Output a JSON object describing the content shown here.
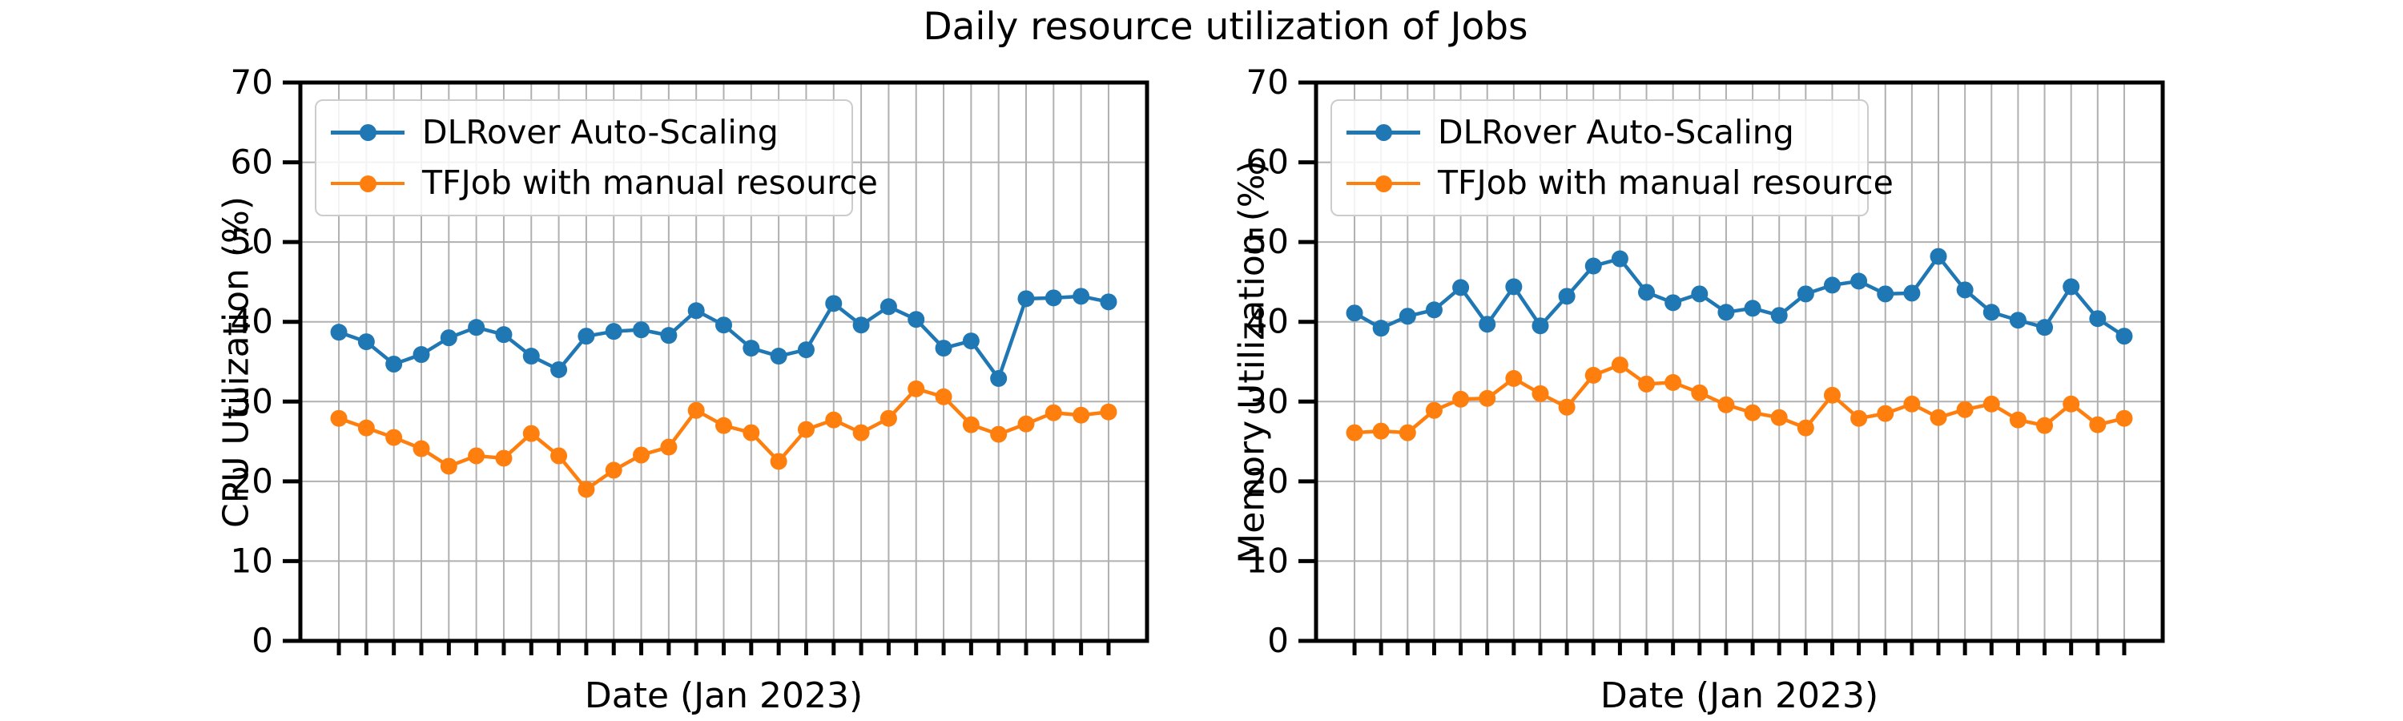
{
  "title": "Daily resource utilization of Jobs",
  "colors": {
    "series1": "#1f77b4",
    "series2": "#ff7f0e",
    "grid": "#b0b0b0",
    "axis": "#000000",
    "legend_border": "#cccccc"
  },
  "legend": {
    "series1": "DLRover Auto-Scaling",
    "series2": "TFJob with manual resource"
  },
  "chart_data": [
    {
      "type": "line",
      "title": "",
      "xlabel": "Date (Jan 2023)",
      "ylabel": "CPU Utilization (%)",
      "ylim": [
        0,
        70
      ],
      "yticks": [
        0,
        10,
        20,
        30,
        40,
        50,
        60,
        70
      ],
      "grid": true,
      "legend_position": "upper left",
      "x": [
        1,
        2,
        3,
        4,
        5,
        6,
        7,
        8,
        9,
        10,
        11,
        12,
        13,
        14,
        15,
        16,
        17,
        18,
        19,
        20,
        21,
        22,
        23,
        24,
        25,
        26,
        27,
        28,
        29
      ],
      "series": [
        {
          "name": "DLRover Auto-Scaling",
          "color": "#1f77b4",
          "values": [
            38.7,
            37.5,
            34.7,
            35.9,
            38.0,
            39.3,
            38.4,
            35.7,
            34.0,
            38.2,
            38.8,
            39.0,
            38.3,
            41.4,
            39.6,
            36.7,
            35.7,
            36.5,
            42.3,
            39.6,
            41.9,
            40.3,
            36.7,
            37.6,
            32.9,
            42.9,
            43.0,
            43.2,
            42.5
          ]
        },
        {
          "name": "TFJob with manual resource",
          "color": "#ff7f0e",
          "values": [
            27.9,
            26.7,
            25.5,
            24.1,
            21.9,
            23.2,
            22.9,
            26.0,
            23.2,
            19.0,
            21.4,
            23.3,
            24.3,
            28.9,
            27.0,
            26.1,
            22.5,
            26.5,
            27.7,
            26.1,
            27.9,
            31.6,
            30.6,
            27.1,
            25.9,
            27.2,
            28.6,
            28.3,
            28.7
          ]
        }
      ]
    },
    {
      "type": "line",
      "title": "",
      "xlabel": "Date (Jan 2023)",
      "ylabel": "Memory Utilization (%)",
      "ylim": [
        0,
        70
      ],
      "yticks": [
        0,
        10,
        20,
        30,
        40,
        50,
        60,
        70
      ],
      "grid": true,
      "legend_position": "upper left",
      "x": [
        1,
        2,
        3,
        4,
        5,
        6,
        7,
        8,
        9,
        10,
        11,
        12,
        13,
        14,
        15,
        16,
        17,
        18,
        19,
        20,
        21,
        22,
        23,
        24,
        25,
        26,
        27,
        28,
        29,
        30
      ],
      "series": [
        {
          "name": "DLRover Auto-Scaling",
          "color": "#1f77b4",
          "values": [
            41.1,
            39.2,
            40.7,
            41.5,
            44.3,
            39.7,
            44.4,
            39.5,
            43.2,
            47.0,
            47.9,
            43.7,
            42.4,
            43.5,
            41.2,
            41.7,
            40.8,
            43.5,
            44.6,
            45.1,
            43.5,
            43.6,
            48.2,
            44.0,
            41.2,
            40.2,
            39.3,
            44.4,
            40.4,
            38.2
          ]
        },
        {
          "name": "TFJob with manual resource",
          "color": "#ff7f0e",
          "values": [
            26.1,
            26.3,
            26.1,
            28.9,
            30.3,
            30.4,
            32.9,
            31.0,
            29.3,
            33.3,
            34.6,
            32.2,
            32.4,
            31.1,
            29.6,
            28.6,
            28.0,
            26.7,
            30.8,
            27.9,
            28.5,
            29.7,
            28.0,
            29.0,
            29.7,
            27.7,
            27.0,
            29.7,
            27.1,
            27.9
          ]
        }
      ]
    }
  ]
}
